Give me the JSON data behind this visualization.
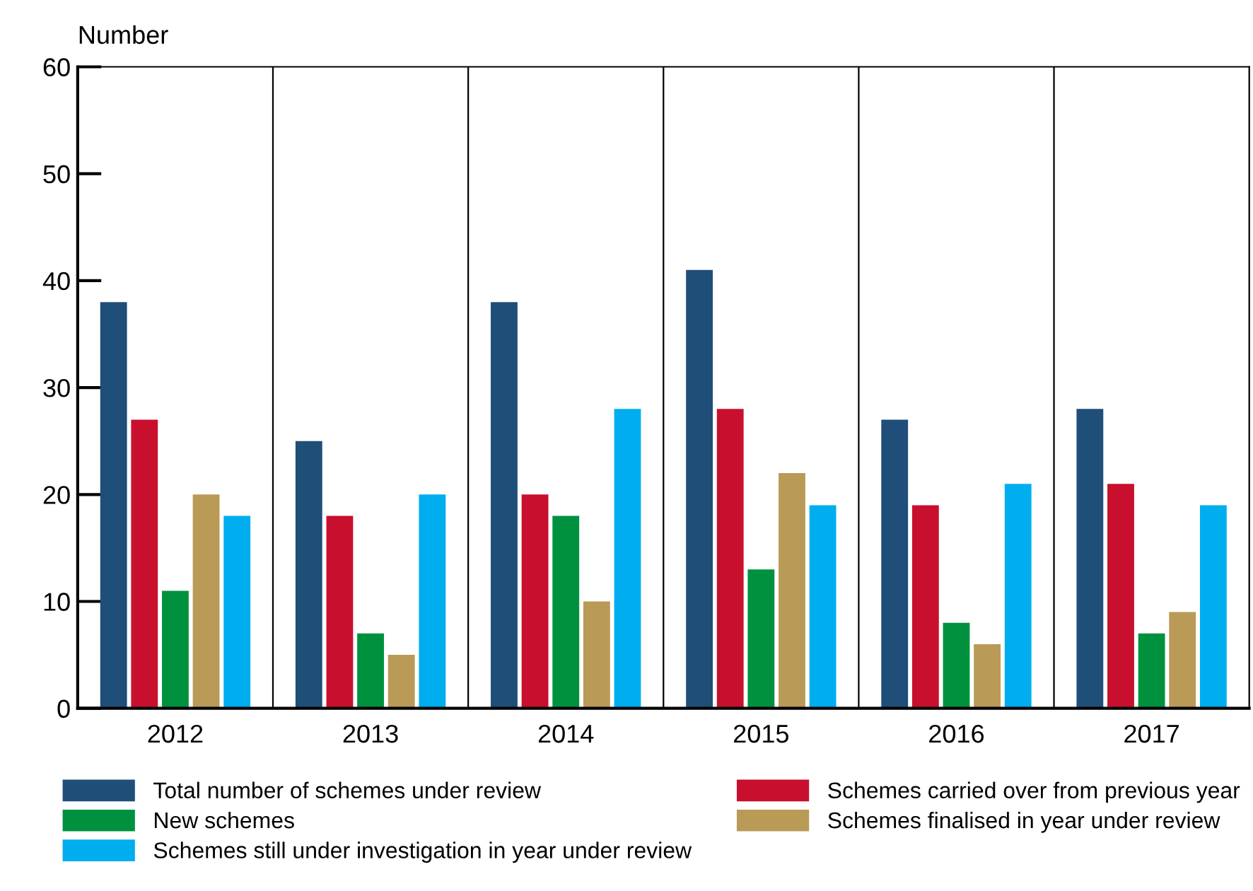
{
  "chart_data": {
    "type": "bar",
    "ylabel": "Number",
    "categories": [
      "2012",
      "2013",
      "2014",
      "2015",
      "2016",
      "2017"
    ],
    "series": [
      {
        "name": "Total number of schemes under review",
        "color": "#1f4e79",
        "values": [
          38,
          25,
          38,
          41,
          27,
          28
        ]
      },
      {
        "name": "Schemes carried over from previous year",
        "color": "#c8102e",
        "values": [
          27,
          18,
          20,
          28,
          19,
          21
        ]
      },
      {
        "name": "New schemes",
        "color": "#00913f",
        "values": [
          11,
          7,
          18,
          13,
          8,
          7
        ]
      },
      {
        "name": "Schemes finalised in year under review",
        "color": "#b99a56",
        "values": [
          20,
          5,
          10,
          22,
          6,
          9
        ]
      },
      {
        "name": "Schemes still under investigation in year under review",
        "color": "#00aeef",
        "values": [
          18,
          20,
          28,
          19,
          21,
          19
        ]
      }
    ],
    "ylim": [
      0,
      60
    ],
    "yticks": [
      0,
      10,
      20,
      30,
      40,
      50,
      60
    ],
    "grid": "x",
    "legend": "bottom"
  }
}
